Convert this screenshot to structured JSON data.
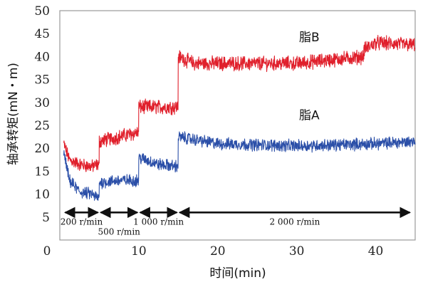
{
  "chart_data": {
    "type": "line",
    "xlabel": "时间(min)",
    "ylabel": "轴承转矩(mN・m)",
    "xlim": [
      0,
      45
    ],
    "ylim": [
      0,
      50
    ],
    "x_ticks": [
      0,
      10,
      20,
      30,
      40
    ],
    "y_ticks": [
      5,
      10,
      15,
      20,
      25,
      30,
      35,
      40,
      45,
      50
    ],
    "grid": false,
    "colors": {
      "series_A": "#2b4fa8",
      "series_B": "#e0202c",
      "arrows": "#111111",
      "frame": "#9a9a9a"
    },
    "series": [
      {
        "name": "脂B",
        "color": "#e0202c",
        "segments": [
          {
            "x_start": 0.5,
            "x_end": 5.0,
            "values": [
              [
                0.5,
                21
              ],
              [
                1.2,
                17.5
              ],
              [
                2.5,
                16.5
              ],
              [
                4.0,
                16
              ],
              [
                5.0,
                16.5
              ]
            ],
            "noise": 1.2
          },
          {
            "x_start": 5.0,
            "x_end": 10.0,
            "values": [
              [
                5.0,
                21.5
              ],
              [
                7.5,
                22.5
              ],
              [
                10.0,
                23.5
              ]
            ],
            "noise": 1.3
          },
          {
            "x_start": 10.0,
            "x_end": 15.0,
            "values": [
              [
                10.0,
                29
              ],
              [
                12.5,
                29
              ],
              [
                15.0,
                29
              ]
            ],
            "noise": 1.3
          },
          {
            "x_start": 15.0,
            "x_end": 38.5,
            "values": [
              [
                15.0,
                40
              ],
              [
                17.0,
                38.5
              ],
              [
                22.0,
                38.5
              ],
              [
                30.0,
                38.5
              ],
              [
                38.5,
                40
              ]
            ],
            "noise": 1.3
          },
          {
            "x_start": 38.5,
            "x_end": 45.0,
            "values": [
              [
                38.5,
                41.5
              ],
              [
                40.0,
                43
              ],
              [
                45.0,
                42.5
              ]
            ],
            "noise": 1.3
          }
        ]
      },
      {
        "name": "脂A",
        "color": "#2b4fa8",
        "segments": [
          {
            "x_start": 0.5,
            "x_end": 5.0,
            "values": [
              [
                0.5,
                19
              ],
              [
                1.2,
                13
              ],
              [
                2.5,
                10.5
              ],
              [
                4.0,
                10
              ],
              [
                5.0,
                9
              ]
            ],
            "noise": 1.1
          },
          {
            "x_start": 5.0,
            "x_end": 10.0,
            "values": [
              [
                5.0,
                12.5
              ],
              [
                7.5,
                13
              ],
              [
                10.0,
                13
              ]
            ],
            "noise": 1.1
          },
          {
            "x_start": 10.0,
            "x_end": 15.0,
            "values": [
              [
                10.0,
                18
              ],
              [
                12.5,
                16.5
              ],
              [
                15.0,
                16
              ]
            ],
            "noise": 1.1
          },
          {
            "x_start": 15.0,
            "x_end": 45.0,
            "values": [
              [
                15.0,
                22.5
              ],
              [
                20.0,
                21
              ],
              [
                30.0,
                20.5
              ],
              [
                40.0,
                21
              ],
              [
                45.0,
                21.5
              ]
            ],
            "noise": 1.1
          }
        ]
      }
    ],
    "annotations": [
      {
        "text": "200 r/min",
        "x_start": 0.5,
        "x_end": 5.0,
        "label_row": 1
      },
      {
        "text": "500 r/min",
        "x_start": 5.0,
        "x_end": 10.0,
        "label_row": 2
      },
      {
        "text": "1 000 r/min",
        "x_start": 10.0,
        "x_end": 15.0,
        "label_row": 1
      },
      {
        "text": "2 000 r/min",
        "x_start": 15.0,
        "x_end": 44.5,
        "label_row": 1
      }
    ],
    "arrow_y": 6.0,
    "series_labels": [
      {
        "text": "脂B",
        "series": "脂B",
        "x": 30.3,
        "y": 43.3
      },
      {
        "text": "脂A",
        "series": "脂A",
        "x": 30.3,
        "y": 26.3
      }
    ]
  }
}
